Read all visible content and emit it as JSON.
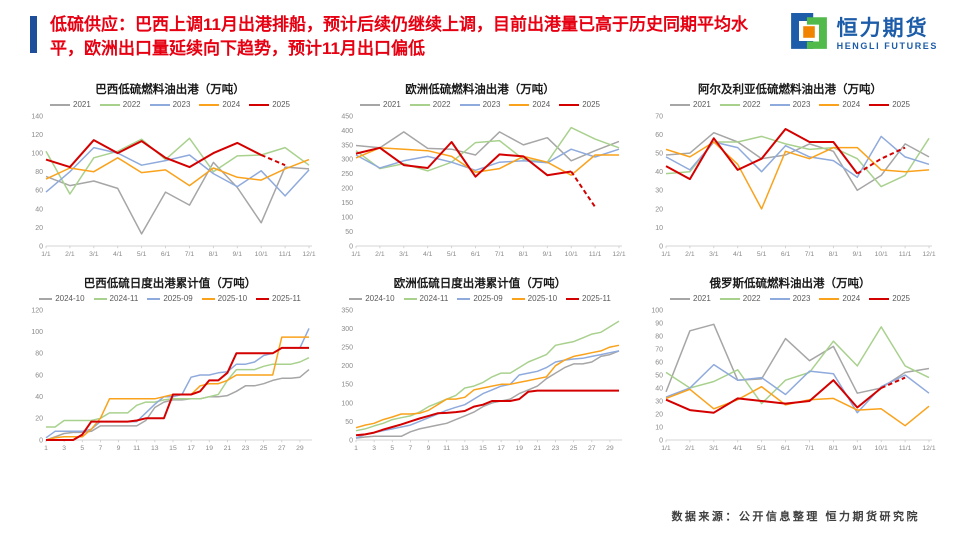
{
  "header": {
    "title": "低硫供应：巴西上调11月出港排船，预计后续仍继续上调，目前出港量已高于历史同期平均水平，欧洲出口量延续向下趋势，预计11月出口偏低",
    "title_color": "#E60012",
    "accent_color": "#1F4E9B",
    "logo": {
      "cn": "恒力期货",
      "en": "HENGLI FUTURES",
      "blue": "#1C5CA8",
      "green": "#52B94B",
      "orange": "#F08300"
    }
  },
  "footer": {
    "source": "数据来源：公开信息整理  恒力期货研究院"
  },
  "palette": {
    "gray": "#A6A6A6",
    "green": "#A9D18E",
    "blue": "#8FAADC",
    "orange": "#FAA21B",
    "red": "#D40000",
    "axis": "#C9C9C9",
    "tick_text": "#8a8a8a"
  },
  "chart_data": [
    {
      "id": "brazil-monthly",
      "type": "line",
      "title": "巴西低硫燃料油出港（万吨）",
      "categories": [
        "1/1",
        "2/1",
        "3/1",
        "4/1",
        "5/1",
        "6/1",
        "7/1",
        "8/1",
        "9/1",
        "10/1",
        "11/1",
        "12/1"
      ],
      "xtick_step": 1,
      "ylim": [
        0,
        140
      ],
      "ytick_step": 20,
      "grid": false,
      "legend_position": "top",
      "series": [
        {
          "name": "2021",
          "color": "#A6A6A6",
          "values": [
            75,
            65,
            70,
            62,
            13,
            58,
            44,
            90,
            63,
            25,
            85,
            83
          ]
        },
        {
          "name": "2022",
          "color": "#A9D18E",
          "values": [
            102,
            56,
            95,
            102,
            115,
            93,
            116,
            80,
            97,
            98,
            106,
            87
          ]
        },
        {
          "name": "2023",
          "color": "#8FAADC",
          "values": [
            58,
            80,
            106,
            100,
            87,
            92,
            98,
            78,
            64,
            81,
            54,
            82
          ]
        },
        {
          "name": "2024",
          "color": "#FAA21B",
          "values": [
            72,
            84,
            80,
            95,
            79,
            82,
            65,
            84,
            74,
            71,
            83,
            93
          ]
        },
        {
          "name": "2025",
          "color": "#D40000",
          "width": 2,
          "dash_from": 9,
          "values": [
            93,
            85,
            114,
            100,
            113,
            95,
            85,
            100,
            111,
            98,
            87,
            null
          ]
        }
      ]
    },
    {
      "id": "europe-monthly",
      "type": "line",
      "title": "欧洲低硫燃料油出港（万吨）",
      "categories": [
        "1/1",
        "2/1",
        "3/1",
        "4/1",
        "5/1",
        "6/1",
        "7/1",
        "8/1",
        "9/1",
        "10/1",
        "11/1",
        "12/1"
      ],
      "xtick_step": 1,
      "ylim": [
        0,
        450
      ],
      "ytick_step": 50,
      "grid": false,
      "legend_position": "top",
      "series": [
        {
          "name": "2021",
          "color": "#A6A6A6",
          "values": [
            348,
            340,
            395,
            338,
            335,
            315,
            395,
            350,
            375,
            295,
            330,
            362
          ]
        },
        {
          "name": "2022",
          "color": "#A9D18E",
          "values": [
            330,
            268,
            285,
            260,
            290,
            358,
            365,
            300,
            290,
            410,
            370,
            340
          ]
        },
        {
          "name": "2023",
          "color": "#8FAADC",
          "values": [
            315,
            270,
            295,
            310,
            290,
            262,
            290,
            295,
            288,
            335,
            308,
            335
          ]
        },
        {
          "name": "2024",
          "color": "#FAA21B",
          "values": [
            305,
            340,
            335,
            330,
            310,
            255,
            268,
            310,
            290,
            245,
            315,
            315
          ]
        },
        {
          "name": "2025",
          "color": "#D40000",
          "width": 2,
          "dash_from": 9,
          "values": [
            320,
            340,
            280,
            270,
            360,
            240,
            317,
            310,
            245,
            258,
            135,
            null
          ]
        }
      ]
    },
    {
      "id": "algeria-monthly",
      "type": "line",
      "title": "阿尔及利亚低硫燃料油出港（万吨）",
      "categories": [
        "1/1",
        "2/1",
        "3/1",
        "4/1",
        "5/1",
        "6/1",
        "7/1",
        "8/1",
        "9/1",
        "10/1",
        "11/1",
        "12/1"
      ],
      "xtick_step": 1,
      "ylim": [
        0,
        70
      ],
      "ytick_step": 10,
      "grid": false,
      "legend_position": "top",
      "series": [
        {
          "name": "2021",
          "color": "#A6A6A6",
          "values": [
            49,
            50,
            61,
            56,
            47,
            49,
            55,
            51,
            30,
            38,
            55,
            48
          ]
        },
        {
          "name": "2022",
          "color": "#A9D18E",
          "values": [
            39,
            40,
            56,
            56,
            59,
            55,
            52,
            53,
            47,
            32,
            38,
            58
          ]
        },
        {
          "name": "2023",
          "color": "#8FAADC",
          "values": [
            48,
            41,
            56,
            53,
            40,
            54,
            48,
            46,
            37,
            59,
            48,
            44
          ]
        },
        {
          "name": "2024",
          "color": "#FAA21B",
          "values": [
            52,
            48,
            56,
            44,
            20,
            51,
            47,
            53,
            53,
            41,
            40,
            41
          ]
        },
        {
          "name": "2025",
          "color": "#D40000",
          "width": 2,
          "dash_from": 8,
          "values": [
            43,
            36,
            58,
            41,
            47,
            63,
            56,
            56,
            39,
            47,
            53,
            null
          ]
        }
      ]
    },
    {
      "id": "brazil-daily-cumulative",
      "type": "line",
      "title": "巴西低硫日度出港累计值（万吨）",
      "categories": [
        "1",
        "2",
        "3",
        "4",
        "5",
        "6",
        "7",
        "8",
        "9",
        "10",
        "11",
        "12",
        "13",
        "14",
        "15",
        "16",
        "17",
        "18",
        "19",
        "20",
        "21",
        "22",
        "23",
        "24",
        "25",
        "26",
        "27",
        "28",
        "29",
        "30"
      ],
      "xtick_step": 2,
      "ylim": [
        0,
        120
      ],
      "ytick_step": 20,
      "grid": false,
      "legend_position": "top",
      "series": [
        {
          "name": "2024-10",
          "color": "#A6A6A6",
          "values": [
            0,
            3,
            6,
            7,
            7,
            8,
            13,
            13,
            13,
            13,
            13,
            18,
            30,
            35,
            37,
            37,
            38,
            38,
            40,
            40,
            41,
            45,
            50,
            50,
            52,
            55,
            57,
            57,
            58,
            65
          ]
        },
        {
          "name": "2024-11",
          "color": "#A9D18E",
          "values": [
            12,
            12,
            18,
            18,
            18,
            18,
            20,
            25,
            25,
            25,
            32,
            35,
            35,
            37,
            38,
            38,
            38,
            38,
            40,
            42,
            55,
            65,
            65,
            65,
            68,
            70,
            70,
            70,
            72,
            76
          ]
        },
        {
          "name": "2025-09",
          "color": "#8FAADC",
          "values": [
            2,
            8,
            8,
            8,
            8,
            10,
            17,
            17,
            17,
            17,
            17,
            25,
            33,
            40,
            40,
            42,
            58,
            60,
            60,
            62,
            63,
            70,
            70,
            72,
            78,
            80,
            85,
            85,
            85,
            103
          ]
        },
        {
          "name": "2025-10",
          "color": "#FAA21B",
          "values": [
            0,
            2,
            3,
            3,
            3,
            10,
            20,
            38,
            38,
            38,
            38,
            38,
            38,
            40,
            42,
            42,
            42,
            50,
            52,
            52,
            55,
            60,
            60,
            60,
            60,
            60,
            95,
            95,
            95,
            95
          ]
        },
        {
          "name": "2025-11",
          "color": "#D40000",
          "width": 2,
          "values": [
            0,
            0,
            0,
            0,
            5,
            17,
            17,
            17,
            17,
            17,
            18,
            20,
            20,
            20,
            42,
            42,
            42,
            45,
            55,
            55,
            62,
            80,
            80,
            80,
            80,
            80,
            85,
            85,
            85,
            85
          ]
        }
      ]
    },
    {
      "id": "europe-daily-cumulative",
      "type": "line",
      "title": "欧洲低硫日度出港累计值（万吨）",
      "categories": [
        "1",
        "2",
        "3",
        "4",
        "5",
        "6",
        "7",
        "8",
        "9",
        "10",
        "11",
        "12",
        "13",
        "14",
        "15",
        "16",
        "17",
        "18",
        "19",
        "20",
        "21",
        "22",
        "23",
        "24",
        "25",
        "26",
        "27",
        "28",
        "29",
        "30"
      ],
      "xtick_step": 2,
      "ylim": [
        0,
        350
      ],
      "ytick_step": 50,
      "grid": false,
      "legend_position": "top",
      "series": [
        {
          "name": "2024-10",
          "color": "#A6A6A6",
          "values": [
            5,
            8,
            10,
            10,
            10,
            10,
            22,
            30,
            35,
            40,
            45,
            55,
            65,
            75,
            90,
            100,
            105,
            110,
            125,
            135,
            145,
            165,
            180,
            195,
            205,
            205,
            210,
            225,
            230,
            240
          ]
        },
        {
          "name": "2024-11",
          "color": "#A9D18E",
          "values": [
            25,
            30,
            38,
            45,
            55,
            60,
            65,
            75,
            90,
            100,
            110,
            120,
            140,
            145,
            155,
            170,
            180,
            180,
            195,
            210,
            220,
            230,
            255,
            260,
            265,
            275,
            285,
            290,
            305,
            320
          ]
        },
        {
          "name": "2025-09",
          "color": "#8FAADC",
          "values": [
            5,
            15,
            20,
            25,
            30,
            35,
            40,
            50,
            60,
            70,
            80,
            88,
            95,
            110,
            125,
            135,
            145,
            150,
            175,
            180,
            185,
            195,
            210,
            215,
            218,
            220,
            225,
            230,
            235,
            240
          ]
        },
        {
          "name": "2025-10",
          "color": "#FAA21B",
          "values": [
            33,
            40,
            45,
            55,
            62,
            70,
            70,
            72,
            80,
            95,
            110,
            110,
            115,
            135,
            140,
            145,
            150,
            150,
            155,
            160,
            165,
            170,
            200,
            215,
            225,
            230,
            235,
            240,
            250,
            255
          ]
        },
        {
          "name": "2025-11",
          "color": "#D40000",
          "width": 2,
          "values": [
            13,
            15,
            20,
            28,
            35,
            42,
            50,
            58,
            65,
            72,
            73,
            75,
            78,
            90,
            95,
            105,
            105,
            105,
            110,
            130,
            133,
            133,
            133,
            133,
            133,
            133,
            133,
            133,
            133,
            133
          ]
        }
      ]
    },
    {
      "id": "russia-monthly",
      "type": "line",
      "title": "俄罗斯低硫燃料油出港（万吨）",
      "categories": [
        "1/1",
        "2/1",
        "3/1",
        "4/1",
        "5/1",
        "6/1",
        "7/1",
        "8/1",
        "9/1",
        "10/1",
        "11/1",
        "12/1"
      ],
      "xtick_step": 1,
      "ylim": [
        0,
        100
      ],
      "ytick_step": 10,
      "grid": false,
      "legend_position": "top",
      "series": [
        {
          "name": "2021",
          "color": "#A6A6A6",
          "values": [
            37,
            84,
            89,
            46,
            47,
            78,
            61,
            72,
            36,
            40,
            52,
            55
          ]
        },
        {
          "name": "2022",
          "color": "#A9D18E",
          "values": [
            52,
            40,
            45,
            54,
            28,
            46,
            52,
            76,
            57,
            87,
            57,
            48
          ]
        },
        {
          "name": "2023",
          "color": "#8FAADC",
          "values": [
            33,
            40,
            58,
            46,
            48,
            35,
            53,
            51,
            21,
            41,
            50,
            36
          ]
        },
        {
          "name": "2024",
          "color": "#FAA21B",
          "values": [
            32,
            39,
            24,
            31,
            41,
            27,
            31,
            32,
            23,
            24,
            11,
            26
          ]
        },
        {
          "name": "2025",
          "color": "#D40000",
          "width": 2,
          "dash_from": 9,
          "values": [
            31,
            23,
            21,
            32,
            30,
            28,
            30,
            46,
            25,
            40,
            48,
            null
          ]
        }
      ]
    }
  ]
}
